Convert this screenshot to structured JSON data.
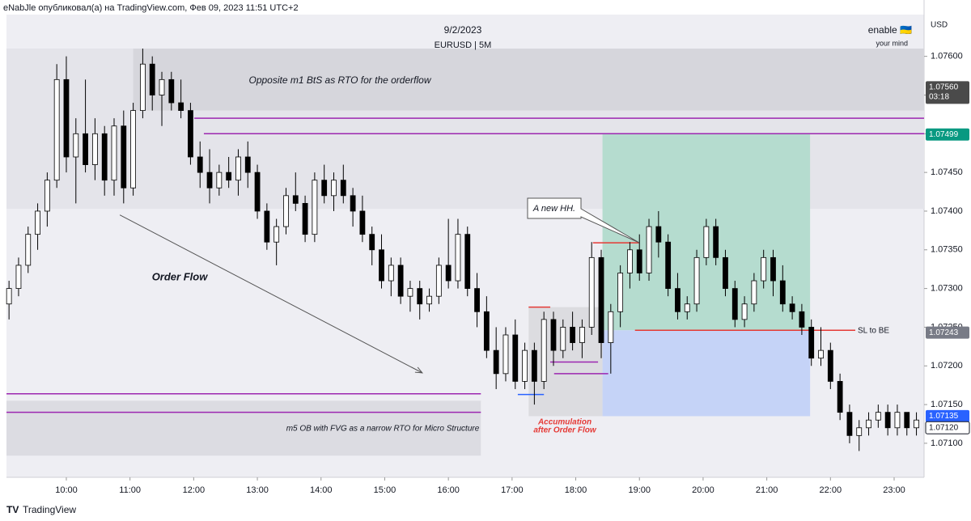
{
  "header": {
    "publisher": "eNabJle опубликовал(а) на TradingView.com, Фев 09, 2023 11:51 UTC+2",
    "footer": "TradingView",
    "brand": "enable 🇺🇦",
    "brand_sub": "your mind",
    "currency": "USD"
  },
  "chart_data": {
    "type": "candlestick",
    "title": "9/2/2023",
    "subtitle": "EURUSD | 5M",
    "up_color": "#ffffff",
    "down_color": "#000000",
    "wick_color": "#000000",
    "xlim": [
      9.06,
      23.47
    ],
    "xticks": [
      {
        "value": 10,
        "label": "10:00"
      },
      {
        "value": 11,
        "label": "11:00"
      },
      {
        "value": 12,
        "label": "12:00"
      },
      {
        "value": 13,
        "label": "13:00"
      },
      {
        "value": 14,
        "label": "14:00"
      },
      {
        "value": 15,
        "label": "15:00"
      },
      {
        "value": 16,
        "label": "16:00"
      },
      {
        "value": 17,
        "label": "17:00"
      },
      {
        "value": 18,
        "label": "18:00"
      },
      {
        "value": 19,
        "label": "19:00"
      },
      {
        "value": 20,
        "label": "20:00"
      },
      {
        "value": 21,
        "label": "21:00"
      },
      {
        "value": 22,
        "label": "22:00"
      },
      {
        "value": 23,
        "label": "23:00"
      }
    ],
    "ylim": [
      1.07056,
      1.07654
    ],
    "yticks": [
      {
        "value": 1.071,
        "label": "1.07100"
      },
      {
        "value": 1.0715,
        "label": "1.07150"
      },
      {
        "value": 1.072,
        "label": "1.07200"
      },
      {
        "value": 1.0725,
        "label": "1.07250"
      },
      {
        "value": 1.073,
        "label": "1.07300"
      },
      {
        "value": 1.0735,
        "label": "1.07350"
      },
      {
        "value": 1.074,
        "label": "1.07400"
      },
      {
        "value": 1.0745,
        "label": "1.07450"
      },
      {
        "value": 1.075,
        "label": "1.07500"
      },
      {
        "value": 1.0755,
        "label": "1.07550"
      },
      {
        "value": 1.076,
        "label": "1.07600"
      }
    ],
    "candles": [
      {
        "x": 9.1,
        "o": 1.0728,
        "h": 1.0731,
        "l": 1.0726,
        "c": 1.073
      },
      {
        "x": 9.25,
        "o": 1.073,
        "h": 1.0734,
        "l": 1.0729,
        "c": 1.0733
      },
      {
        "x": 9.4,
        "o": 1.0733,
        "h": 1.0738,
        "l": 1.0732,
        "c": 1.0737
      },
      {
        "x": 9.55,
        "o": 1.0737,
        "h": 1.0741,
        "l": 1.0735,
        "c": 1.074
      },
      {
        "x": 9.7,
        "o": 1.074,
        "h": 1.0745,
        "l": 1.0738,
        "c": 1.0744
      },
      {
        "x": 9.85,
        "o": 1.0744,
        "h": 1.0759,
        "l": 1.0743,
        "c": 1.0757
      },
      {
        "x": 10.0,
        "o": 1.0757,
        "h": 1.076,
        "l": 1.0745,
        "c": 1.0747
      },
      {
        "x": 10.15,
        "o": 1.0747,
        "h": 1.0752,
        "l": 1.0741,
        "c": 1.075
      },
      {
        "x": 10.3,
        "o": 1.075,
        "h": 1.0757,
        "l": 1.0745,
        "c": 1.0746
      },
      {
        "x": 10.45,
        "o": 1.0746,
        "h": 1.0752,
        "l": 1.0744,
        "c": 1.075
      },
      {
        "x": 10.6,
        "o": 1.075,
        "h": 1.0751,
        "l": 1.0742,
        "c": 1.0744
      },
      {
        "x": 10.75,
        "o": 1.0744,
        "h": 1.0752,
        "l": 1.0742,
        "c": 1.0751
      },
      {
        "x": 10.9,
        "o": 1.0751,
        "h": 1.0753,
        "l": 1.0741,
        "c": 1.0743
      },
      {
        "x": 11.05,
        "o": 1.0743,
        "h": 1.0754,
        "l": 1.0742,
        "c": 1.0753
      },
      {
        "x": 11.2,
        "o": 1.0753,
        "h": 1.0761,
        "l": 1.0752,
        "c": 1.0759
      },
      {
        "x": 11.35,
        "o": 1.0759,
        "h": 1.076,
        "l": 1.0753,
        "c": 1.0755
      },
      {
        "x": 11.5,
        "o": 1.0755,
        "h": 1.0758,
        "l": 1.0751,
        "c": 1.0757
      },
      {
        "x": 11.65,
        "o": 1.0757,
        "h": 1.0758,
        "l": 1.0753,
        "c": 1.0754
      },
      {
        "x": 11.8,
        "o": 1.0754,
        "h": 1.0757,
        "l": 1.0752,
        "c": 1.0753
      },
      {
        "x": 11.95,
        "o": 1.0753,
        "h": 1.0754,
        "l": 1.0746,
        "c": 1.0747
      },
      {
        "x": 12.1,
        "o": 1.0747,
        "h": 1.0749,
        "l": 1.0743,
        "c": 1.0745
      },
      {
        "x": 12.25,
        "o": 1.0745,
        "h": 1.0748,
        "l": 1.0741,
        "c": 1.0743
      },
      {
        "x": 12.4,
        "o": 1.0743,
        "h": 1.0746,
        "l": 1.0742,
        "c": 1.0745
      },
      {
        "x": 12.55,
        "o": 1.0745,
        "h": 1.0747,
        "l": 1.0743,
        "c": 1.0744
      },
      {
        "x": 12.7,
        "o": 1.0744,
        "h": 1.0748,
        "l": 1.0742,
        "c": 1.0747
      },
      {
        "x": 12.85,
        "o": 1.0747,
        "h": 1.0749,
        "l": 1.0743,
        "c": 1.0745
      },
      {
        "x": 13.0,
        "o": 1.0745,
        "h": 1.0746,
        "l": 1.0739,
        "c": 1.074
      },
      {
        "x": 13.15,
        "o": 1.074,
        "h": 1.0741,
        "l": 1.0735,
        "c": 1.0736
      },
      {
        "x": 13.3,
        "o": 1.0736,
        "h": 1.0739,
        "l": 1.0733,
        "c": 1.0738
      },
      {
        "x": 13.45,
        "o": 1.0738,
        "h": 1.0743,
        "l": 1.0737,
        "c": 1.0742
      },
      {
        "x": 13.6,
        "o": 1.0742,
        "h": 1.0745,
        "l": 1.074,
        "c": 1.0741
      },
      {
        "x": 13.75,
        "o": 1.0741,
        "h": 1.0742,
        "l": 1.0736,
        "c": 1.0737
      },
      {
        "x": 13.9,
        "o": 1.0737,
        "h": 1.0745,
        "l": 1.0736,
        "c": 1.0744
      },
      {
        "x": 14.05,
        "o": 1.0744,
        "h": 1.0746,
        "l": 1.0741,
        "c": 1.0742
      },
      {
        "x": 14.2,
        "o": 1.0742,
        "h": 1.0745,
        "l": 1.074,
        "c": 1.0744
      },
      {
        "x": 14.35,
        "o": 1.0744,
        "h": 1.0746,
        "l": 1.0741,
        "c": 1.0742
      },
      {
        "x": 14.5,
        "o": 1.0742,
        "h": 1.0743,
        "l": 1.0738,
        "c": 1.074
      },
      {
        "x": 14.65,
        "o": 1.074,
        "h": 1.0742,
        "l": 1.0736,
        "c": 1.0737
      },
      {
        "x": 14.8,
        "o": 1.0737,
        "h": 1.0738,
        "l": 1.0733,
        "c": 1.0735
      },
      {
        "x": 14.95,
        "o": 1.0735,
        "h": 1.0737,
        "l": 1.073,
        "c": 1.0731
      },
      {
        "x": 15.1,
        "o": 1.0731,
        "h": 1.0734,
        "l": 1.0729,
        "c": 1.0733
      },
      {
        "x": 15.25,
        "o": 1.0733,
        "h": 1.0734,
        "l": 1.0728,
        "c": 1.0729
      },
      {
        "x": 15.4,
        "o": 1.0729,
        "h": 1.0731,
        "l": 1.0727,
        "c": 1.073
      },
      {
        "x": 15.55,
        "o": 1.073,
        "h": 1.0731,
        "l": 1.0726,
        "c": 1.0728
      },
      {
        "x": 15.7,
        "o": 1.0728,
        "h": 1.073,
        "l": 1.0727,
        "c": 1.0729
      },
      {
        "x": 15.85,
        "o": 1.0729,
        "h": 1.0734,
        "l": 1.0728,
        "c": 1.0733
      },
      {
        "x": 16.0,
        "o": 1.0733,
        "h": 1.0739,
        "l": 1.073,
        "c": 1.0731
      },
      {
        "x": 16.15,
        "o": 1.0731,
        "h": 1.0739,
        "l": 1.073,
        "c": 1.0737
      },
      {
        "x": 16.3,
        "o": 1.0737,
        "h": 1.0738,
        "l": 1.0729,
        "c": 1.073
      },
      {
        "x": 16.45,
        "o": 1.073,
        "h": 1.0732,
        "l": 1.0725,
        "c": 1.0727
      },
      {
        "x": 16.6,
        "o": 1.0727,
        "h": 1.0729,
        "l": 1.0721,
        "c": 1.0722
      },
      {
        "x": 16.75,
        "o": 1.0722,
        "h": 1.0725,
        "l": 1.0717,
        "c": 1.0719
      },
      {
        "x": 16.9,
        "o": 1.0719,
        "h": 1.0725,
        "l": 1.0718,
        "c": 1.0724
      },
      {
        "x": 17.05,
        "o": 1.0724,
        "h": 1.0726,
        "l": 1.0717,
        "c": 1.0718
      },
      {
        "x": 17.2,
        "o": 1.0718,
        "h": 1.0723,
        "l": 1.0717,
        "c": 1.0722
      },
      {
        "x": 17.35,
        "o": 1.0722,
        "h": 1.0723,
        "l": 1.0715,
        "c": 1.0718
      },
      {
        "x": 17.5,
        "o": 1.0718,
        "h": 1.0727,
        "l": 1.0717,
        "c": 1.0726
      },
      {
        "x": 17.65,
        "o": 1.0726,
        "h": 1.0727,
        "l": 1.072,
        "c": 1.0722
      },
      {
        "x": 17.8,
        "o": 1.0722,
        "h": 1.0726,
        "l": 1.0721,
        "c": 1.0725
      },
      {
        "x": 17.95,
        "o": 1.0725,
        "h": 1.0727,
        "l": 1.0722,
        "c": 1.0723
      },
      {
        "x": 18.1,
        "o": 1.0723,
        "h": 1.0726,
        "l": 1.0721,
        "c": 1.0725
      },
      {
        "x": 18.25,
        "o": 1.0725,
        "h": 1.0736,
        "l": 1.0724,
        "c": 1.0734
      },
      {
        "x": 18.4,
        "o": 1.0734,
        "h": 1.0735,
        "l": 1.0721,
        "c": 1.0723
      },
      {
        "x": 18.55,
        "o": 1.0723,
        "h": 1.0728,
        "l": 1.0719,
        "c": 1.0727
      },
      {
        "x": 18.7,
        "o": 1.0727,
        "h": 1.0733,
        "l": 1.0725,
        "c": 1.0732
      },
      {
        "x": 18.85,
        "o": 1.0732,
        "h": 1.0736,
        "l": 1.073,
        "c": 1.0735
      },
      {
        "x": 19.0,
        "o": 1.0735,
        "h": 1.0737,
        "l": 1.0731,
        "c": 1.0732
      },
      {
        "x": 19.15,
        "o": 1.0732,
        "h": 1.0739,
        "l": 1.0731,
        "c": 1.0738
      },
      {
        "x": 19.3,
        "o": 1.0738,
        "h": 1.074,
        "l": 1.0734,
        "c": 1.0736
      },
      {
        "x": 19.45,
        "o": 1.0736,
        "h": 1.0737,
        "l": 1.0729,
        "c": 1.073
      },
      {
        "x": 19.6,
        "o": 1.073,
        "h": 1.0732,
        "l": 1.0726,
        "c": 1.0727
      },
      {
        "x": 19.75,
        "o": 1.0727,
        "h": 1.0729,
        "l": 1.0726,
        "c": 1.0728
      },
      {
        "x": 19.9,
        "o": 1.0728,
        "h": 1.0735,
        "l": 1.0727,
        "c": 1.0734
      },
      {
        "x": 20.05,
        "o": 1.0734,
        "h": 1.0739,
        "l": 1.0733,
        "c": 1.0738
      },
      {
        "x": 20.2,
        "o": 1.0738,
        "h": 1.0739,
        "l": 1.0733,
        "c": 1.0734
      },
      {
        "x": 20.35,
        "o": 1.0734,
        "h": 1.0735,
        "l": 1.0729,
        "c": 1.073
      },
      {
        "x": 20.5,
        "o": 1.073,
        "h": 1.0731,
        "l": 1.0725,
        "c": 1.0726
      },
      {
        "x": 20.65,
        "o": 1.0726,
        "h": 1.0729,
        "l": 1.0725,
        "c": 1.0728
      },
      {
        "x": 20.8,
        "o": 1.0728,
        "h": 1.0732,
        "l": 1.0727,
        "c": 1.0731
      },
      {
        "x": 20.95,
        "o": 1.0731,
        "h": 1.0735,
        "l": 1.073,
        "c": 1.0734
      },
      {
        "x": 21.1,
        "o": 1.0734,
        "h": 1.0735,
        "l": 1.0729,
        "c": 1.0731
      },
      {
        "x": 21.25,
        "o": 1.0731,
        "h": 1.0733,
        "l": 1.0727,
        "c": 1.0728
      },
      {
        "x": 21.4,
        "o": 1.0728,
        "h": 1.0729,
        "l": 1.0726,
        "c": 1.0727
      },
      {
        "x": 21.55,
        "o": 1.0727,
        "h": 1.0728,
        "l": 1.0724,
        "c": 1.0725
      },
      {
        "x": 21.7,
        "o": 1.0725,
        "h": 1.0726,
        "l": 1.072,
        "c": 1.0721
      },
      {
        "x": 21.85,
        "o": 1.0721,
        "h": 1.0725,
        "l": 1.072,
        "c": 1.0722
      },
      {
        "x": 22.0,
        "o": 1.0722,
        "h": 1.0723,
        "l": 1.0717,
        "c": 1.0718
      },
      {
        "x": 22.15,
        "o": 1.0718,
        "h": 1.0719,
        "l": 1.0713,
        "c": 1.0714
      },
      {
        "x": 22.3,
        "o": 1.0714,
        "h": 1.0715,
        "l": 1.071,
        "c": 1.0711
      },
      {
        "x": 22.45,
        "o": 1.0711,
        "h": 1.0713,
        "l": 1.0709,
        "c": 1.0712
      },
      {
        "x": 22.6,
        "o": 1.0712,
        "h": 1.0714,
        "l": 1.0711,
        "c": 1.0713
      },
      {
        "x": 22.75,
        "o": 1.0713,
        "h": 1.0715,
        "l": 1.0712,
        "c": 1.0714
      },
      {
        "x": 22.9,
        "o": 1.0714,
        "h": 1.0715,
        "l": 1.0711,
        "c": 1.0712
      },
      {
        "x": 23.05,
        "o": 1.0712,
        "h": 1.0715,
        "l": 1.0711,
        "c": 1.0714
      },
      {
        "x": 23.2,
        "o": 1.0714,
        "h": 1.0714,
        "l": 1.0711,
        "c": 1.0712
      },
      {
        "x": 23.35,
        "o": 1.0712,
        "h": 1.0714,
        "l": 1.0711,
        "c": 1.0713
      }
    ],
    "zones": [
      {
        "x": [
          9.06,
          23.47
        ],
        "y": [
          1.07403,
          1.0761
        ],
        "color": "#e4e4ea"
      },
      {
        "x": [
          11.05,
          23.47
        ],
        "y": [
          1.0753,
          1.0761
        ],
        "color": "#d6d6dc"
      },
      {
        "x": [
          9.06,
          16.51
        ],
        "y": [
          1.07084,
          1.07155
        ],
        "color": "#dcdce2"
      },
      {
        "x": [
          17.26,
          18.42
        ],
        "y": [
          1.07135,
          1.07276
        ],
        "color": "#dcdce0"
      },
      {
        "x": [
          18.42,
          21.68
        ],
        "y": [
          1.07246,
          1.075
        ],
        "color": "#b5dccf"
      },
      {
        "x": [
          18.42,
          21.68
        ],
        "y": [
          1.07135,
          1.07246
        ],
        "color": "#c5d3f7"
      }
    ],
    "lines": [
      {
        "x": [
          12.01,
          23.47
        ],
        "y": 1.0752,
        "color": "#9c27b0"
      },
      {
        "x": [
          12.16,
          23.47
        ],
        "y": 1.075,
        "color": "#9c27b0"
      },
      {
        "x": [
          9.06,
          16.51
        ],
        "y": 1.07164,
        "color": "#9c27b0"
      },
      {
        "x": [
          9.06,
          16.51
        ],
        "y": 1.0714,
        "color": "#9c27b0"
      },
      {
        "x": [
          17.26,
          17.6
        ],
        "y": 1.07276,
        "color": "#e53935"
      },
      {
        "x": [
          18.27,
          19.0
        ],
        "y": 1.07359,
        "color": "#e53935"
      },
      {
        "x": [
          18.93,
          22.39
        ],
        "y": 1.07246,
        "color": "#e53935"
      },
      {
        "x": [
          17.09,
          17.5
        ],
        "y": 1.07163,
        "color": "#2962ff"
      },
      {
        "x": [
          17.66,
          18.51
        ],
        "y": 1.0719,
        "color": "#9c27b0"
      },
      {
        "x": [
          17.6,
          18.35
        ],
        "y": 1.07205,
        "color": "#9c27b0"
      }
    ],
    "arrow": {
      "x": [
        10.84,
        15.59
      ],
      "y": [
        1.07395,
        1.07191
      ]
    },
    "annotations": [
      "Opposite m1 BtS as RTO for the orderflow",
      "Order Flow",
      "A new HH.",
      "m5 OB with FVG as a narrow RTO for Micro Structure",
      "Accumulation",
      "after Order Flow",
      "SL to BE"
    ],
    "price_tags": [
      {
        "value": 1.0756,
        "label": "1.07560",
        "sub": "03:18",
        "color": "#4a4a4a"
      },
      {
        "value": 1.07499,
        "label": "1.07499",
        "color": "#089981"
      },
      {
        "value": 1.07243,
        "label": "1.07243",
        "color": "#787b86"
      },
      {
        "value": 1.07135,
        "label": "1.07135",
        "color": "#2962ff"
      },
      {
        "value": 1.0712,
        "label": "1.07120",
        "color": "#ffffff"
      }
    ]
  }
}
